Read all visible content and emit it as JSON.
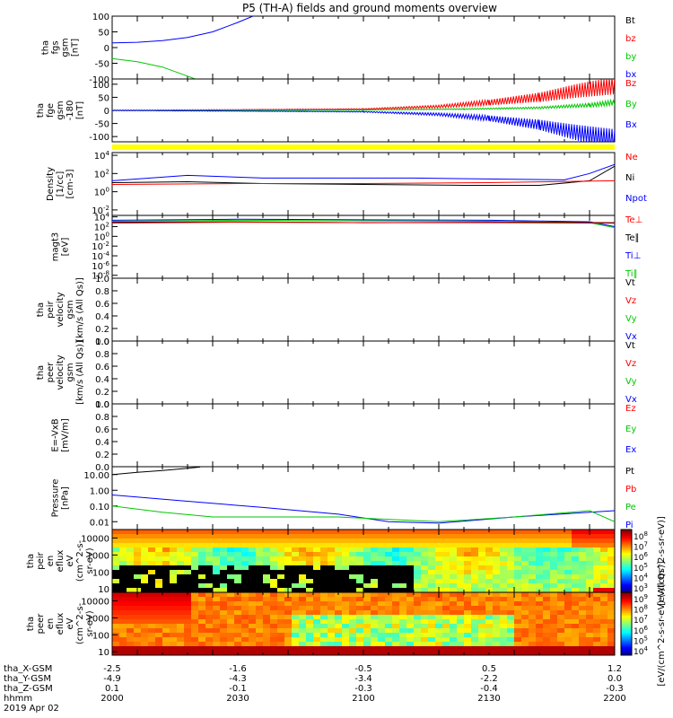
{
  "title": "P5 (TH-A) fields and ground moments overview",
  "colors": {
    "black": "#000000",
    "red": "#ff0000",
    "green": "#00c800",
    "blue": "#0000ff",
    "yellow": "#ffff00",
    "axis": "#000000"
  },
  "chart_data": [
    {
      "type": "line",
      "panel": "fgs",
      "ylabel": [
        "tha",
        "fgs",
        "gsm",
        "[nT]"
      ],
      "ylim": [
        -100,
        100
      ],
      "yticks": [
        100,
        50,
        0,
        -50,
        -100
      ],
      "legend": [
        {
          "label": "Bt",
          "color": "#000000"
        },
        {
          "label": "bz",
          "color": "#ff0000"
        },
        {
          "label": "by",
          "color": "#00c800"
        },
        {
          "label": "bx",
          "color": "#0000ff"
        }
      ],
      "series": [
        {
          "color": "#0000ff",
          "x": [
            2000,
            2010,
            2020,
            2030,
            2040,
            2050,
            2056
          ],
          "y": [
            15,
            17,
            22,
            32,
            50,
            80,
            100
          ]
        },
        {
          "color": "#00c800",
          "x": [
            2000,
            2010,
            2020,
            2028,
            2033
          ],
          "y": [
            -35,
            -45,
            -62,
            -85,
            -100
          ]
        }
      ]
    },
    {
      "type": "line",
      "panel": "fge",
      "ylabel": [
        "tha",
        "fge",
        "gsm",
        "-180",
        "[nT]"
      ],
      "ylim": [
        -120,
        120
      ],
      "yticks": [
        100,
        50,
        0,
        -50,
        -100
      ],
      "legend": [
        {
          "label": "Bz",
          "color": "#ff0000"
        },
        {
          "label": "By",
          "color": "#00c800"
        },
        {
          "label": "Bx",
          "color": "#0000ff"
        }
      ],
      "series": [
        {
          "color": "#ff0000",
          "x": [
            2000,
            2100,
            2130,
            2150,
            2170,
            2185,
            2200
          ],
          "y": [
            0,
            5,
            15,
            30,
            50,
            75,
            95
          ]
        },
        {
          "color": "#00c800",
          "x": [
            2000,
            2100,
            2140,
            2170,
            2190,
            2200
          ],
          "y": [
            0,
            2,
            5,
            10,
            20,
            30
          ]
        },
        {
          "color": "#0000ff",
          "x": [
            2000,
            2100,
            2130,
            2150,
            2170,
            2185,
            2200
          ],
          "y": [
            0,
            -5,
            -15,
            -30,
            -55,
            -85,
            -110
          ]
        }
      ]
    },
    {
      "type": "line",
      "panel": "density",
      "ylabel": [
        "Density",
        "[1/cc]",
        "[cm-3]"
      ],
      "yscale": "log",
      "yticklabels": [
        "10^4",
        "10^2",
        "10^0",
        "10^-2"
      ],
      "legend": [
        {
          "label": "Ne",
          "color": "#ff0000"
        },
        {
          "label": "Ni",
          "color": "#000000"
        },
        {
          "label": "Npot",
          "color": "#0000ff"
        }
      ],
      "series": [
        {
          "color": "#0000ff",
          "x": [
            2000,
            2030,
            2060,
            2120,
            2180,
            2190,
            2200
          ],
          "y": [
            1.2,
            1.8,
            1.5,
            1.5,
            1.3,
            2.0,
            3.0
          ]
        },
        {
          "color": "#000000",
          "x": [
            2000,
            2030,
            2060,
            2100,
            2140,
            2170,
            2190,
            2200
          ],
          "y": [
            1.0,
            1.1,
            0.9,
            0.8,
            0.7,
            0.7,
            1.2,
            2.8
          ]
        },
        {
          "color": "#ff0000",
          "x": [
            2000,
            2050,
            2100,
            2150,
            2200
          ],
          "y": [
            0.8,
            0.9,
            0.9,
            1.0,
            1.2
          ]
        }
      ]
    },
    {
      "type": "line",
      "panel": "temperature",
      "ylabel": [
        "magt3",
        "[eV]"
      ],
      "yscale": "log",
      "yticklabels": [
        "10^4",
        "10^2",
        "10^0",
        "10^-2",
        "10^-4",
        "10^-6",
        "10^-8"
      ],
      "legend": [
        {
          "label": "Te⊥",
          "color": "#ff0000"
        },
        {
          "label": "Te∥",
          "color": "#000000"
        },
        {
          "label": "Ti⊥",
          "color": "#0000ff"
        },
        {
          "label": "Ti∥",
          "color": "#00c800"
        }
      ],
      "series": [
        {
          "color": "#0000ff",
          "x": [
            2000,
            2050,
            2100,
            2150,
            2190,
            2200
          ],
          "y": [
            3.3,
            3.5,
            3.4,
            3.3,
            3.0,
            2.0
          ]
        },
        {
          "color": "#00c800",
          "x": [
            2000,
            2050,
            2100,
            2150,
            2190,
            2200
          ],
          "y": [
            3.1,
            3.3,
            3.2,
            3.1,
            2.8,
            1.8
          ]
        },
        {
          "color": "#000000",
          "x": [
            2000,
            2050,
            2100,
            2150,
            2200
          ],
          "y": [
            2.9,
            3.0,
            2.8,
            2.9,
            2.8
          ]
        },
        {
          "color": "#ff0000",
          "x": [
            2000,
            2050,
            2100,
            2150,
            2200
          ],
          "y": [
            2.7,
            2.9,
            2.8,
            2.8,
            2.7
          ]
        }
      ]
    },
    {
      "type": "line",
      "panel": "peir-velocity",
      "ylabel": [
        "tha",
        "peir",
        "velocity",
        "gsm",
        "[km/s (All Qs)]"
      ],
      "ylim": [
        0,
        1
      ],
      "yticks": [
        1.0,
        0.8,
        0.6,
        0.4,
        0.2,
        0.0
      ],
      "legend": [
        {
          "label": "Vt",
          "color": "#000000"
        },
        {
          "label": "Vz",
          "color": "#ff0000"
        },
        {
          "label": "Vy",
          "color": "#00c800"
        },
        {
          "label": "Vx",
          "color": "#0000ff"
        }
      ],
      "series": []
    },
    {
      "type": "line",
      "panel": "peer-velocity",
      "ylabel": [
        "tha",
        "peer",
        "velocity",
        "gsm",
        "[km/s (All Qs)]"
      ],
      "ylim": [
        0,
        1
      ],
      "yticks": [
        1.0,
        0.8,
        0.6,
        0.4,
        0.2,
        0.0
      ],
      "legend": [
        {
          "label": "Vt",
          "color": "#000000"
        },
        {
          "label": "Vz",
          "color": "#ff0000"
        },
        {
          "label": "Vy",
          "color": "#00c800"
        },
        {
          "label": "Vx",
          "color": "#0000ff"
        }
      ],
      "series": []
    },
    {
      "type": "line",
      "panel": "efield",
      "ylabel": [
        "E=-VxB",
        "[mV/m]"
      ],
      "ylim": [
        0,
        1
      ],
      "yticks": [
        1.0,
        0.8,
        0.6,
        0.4,
        0.2,
        0.0
      ],
      "legend": [
        {
          "label": "Ez",
          "color": "#ff0000"
        },
        {
          "label": "Ey",
          "color": "#00c800"
        },
        {
          "label": "Ex",
          "color": "#0000ff"
        }
      ],
      "series": []
    },
    {
      "type": "line",
      "panel": "pressure",
      "ylabel": [
        "Pressure",
        "[nPa]"
      ],
      "yscale": "log",
      "ylim_log": [
        -2.5,
        1.5
      ],
      "yticks": [
        10.0,
        1.0,
        0.1,
        0.01
      ],
      "yticklabels": [
        "10.00",
        "1.00",
        "0.10",
        "0.01"
      ],
      "legend": [
        {
          "label": "Pt",
          "color": "#000000"
        },
        {
          "label": "Pb",
          "color": "#ff0000"
        },
        {
          "label": "Pe",
          "color": "#00c800"
        },
        {
          "label": "Pi",
          "color": "#0000ff"
        }
      ],
      "series": [
        {
          "color": "#000000",
          "x": [
            2000,
            2010,
            2020,
            2030,
            2035
          ],
          "y": [
            10,
            14,
            18,
            25,
            30
          ]
        },
        {
          "color": "#0000ff",
          "x": [
            2000,
            2030,
            2060,
            2090,
            2110,
            2130,
            2160,
            2200
          ],
          "y": [
            0.5,
            0.2,
            0.08,
            0.03,
            0.01,
            0.008,
            0.02,
            0.05
          ]
        },
        {
          "color": "#00c800",
          "x": [
            2000,
            2020,
            2040,
            2090,
            2130,
            2160,
            2190,
            2200
          ],
          "y": [
            0.1,
            0.04,
            0.02,
            0.02,
            0.01,
            0.02,
            0.05,
            0.01
          ]
        }
      ]
    },
    {
      "type": "heatmap",
      "panel": "peir-spectrogram",
      "ylabel": [
        "tha",
        "peir",
        "en",
        "eflux",
        "eV",
        "(cm^2-s-",
        "sr-eV)"
      ],
      "yscale": "log",
      "yticks": [
        10000,
        1000,
        100,
        10
      ],
      "yticklabels": [
        "10000",
        "1000",
        "100",
        "10"
      ],
      "colorbar_label": "[eV/(cm^2-s-sr-eV)]",
      "colorbar_ticks": [
        "10^8",
        "10^7",
        "10^6",
        "10^5",
        "10^4",
        "10^3"
      ]
    },
    {
      "type": "heatmap",
      "panel": "peer-spectrogram",
      "ylabel": [
        "tha",
        "peer",
        "en",
        "eflux",
        "eV",
        "(cm^2-s-",
        "sr-eV)"
      ],
      "yscale": "log",
      "yticks": [
        10000,
        1000,
        100,
        10
      ],
      "yticklabels": [
        "10000",
        "1000",
        "100",
        "10"
      ],
      "colorbar_label": "[eV/(cm^2-s-sr-eV) (All Qs)]",
      "colorbar_ticks": [
        "10^9",
        "10^8",
        "10^7",
        "10^6",
        "10^5",
        "10^4"
      ]
    }
  ],
  "xaxis": {
    "xlim": [
      2000,
      2200
    ],
    "rows": [
      {
        "label": "tha_X-GSM",
        "values": [
          "-2.5",
          "-1.6",
          "-0.5",
          "0.5",
          "1.2"
        ]
      },
      {
        "label": "tha_Y-GSM",
        "values": [
          "-4.9",
          "-4.3",
          "-3.4",
          "-2.2",
          "0.0"
        ]
      },
      {
        "label": "tha_Z-GSM",
        "values": [
          "0.1",
          "-0.1",
          "-0.3",
          "-0.4",
          "-0.3"
        ]
      },
      {
        "label": "hhmm",
        "values": [
          "2000",
          "2030",
          "2100",
          "2130",
          "2200"
        ]
      }
    ],
    "date": "2019 Apr 02"
  }
}
